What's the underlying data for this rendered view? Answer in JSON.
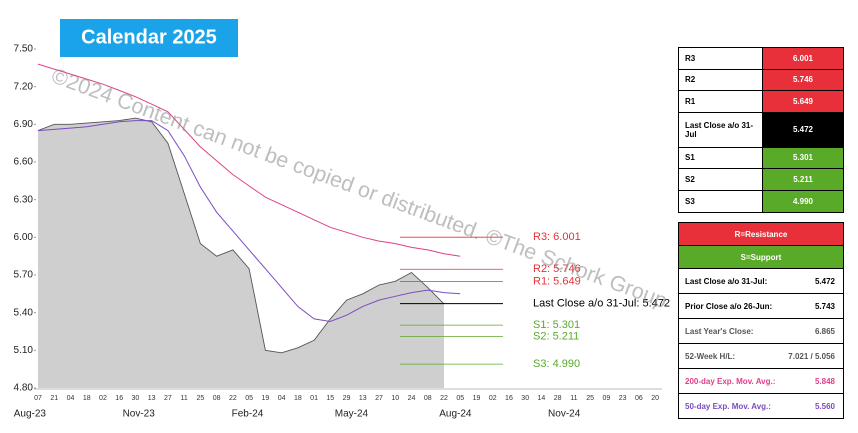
{
  "title": "Calendar 2025",
  "watermark": "©2024 Content can not be copied or distributed. ©The Schork Group",
  "chart_data": {
    "type": "line",
    "categories": [
      "07",
      "21",
      "04",
      "18",
      "02",
      "16",
      "30",
      "13",
      "27",
      "11",
      "25",
      "08",
      "22",
      "05",
      "19",
      "04",
      "18",
      "01",
      "15",
      "29",
      "13",
      "27",
      "10",
      "24",
      "08",
      "22",
      "05",
      "19",
      "02",
      "16",
      "30",
      "14",
      "28",
      "11",
      "25",
      "09",
      "23",
      "06",
      "20"
    ],
    "x_groups": [
      "Aug-23",
      "Nov-23",
      "Feb-24",
      "May-24",
      "Aug-24",
      "Nov-24"
    ],
    "ylim": [
      4.8,
      7.5
    ],
    "yticks": [
      {
        "value": 7.5,
        "label": "7.50"
      },
      {
        "value": 7.2,
        "label": "7.20"
      },
      {
        "value": 6.9,
        "label": "6.90"
      },
      {
        "value": 6.6,
        "label": "6.60"
      },
      {
        "value": 6.3,
        "label": "6.30"
      },
      {
        "value": 6.0,
        "label": "6.00"
      },
      {
        "value": 5.7,
        "label": "5.70"
      },
      {
        "value": 5.4,
        "label": "5.40"
      },
      {
        "value": 5.1,
        "label": "5.10"
      },
      {
        "value": 4.8,
        "label": "4.80"
      }
    ],
    "series": [
      {
        "style": "area",
        "color": "#cfcfcf",
        "values": [
          6.85,
          6.9,
          6.9,
          6.91,
          6.92,
          6.93,
          6.95,
          6.92,
          6.75,
          6.35,
          5.95,
          5.85,
          5.9,
          5.75,
          5.1,
          5.08,
          5.12,
          5.18,
          5.35,
          5.5,
          5.55,
          5.62,
          5.65,
          5.72,
          5.6,
          5.47,
          null,
          null,
          null,
          null,
          null,
          null,
          null,
          null,
          null,
          null,
          null,
          null,
          null
        ]
      },
      {
        "style": "line",
        "color": "#e0408a",
        "values": [
          7.38,
          7.34,
          7.3,
          7.26,
          7.22,
          7.17,
          7.12,
          7.06,
          7.0,
          6.86,
          6.72,
          6.61,
          6.5,
          6.41,
          6.32,
          6.26,
          6.2,
          6.14,
          6.08,
          6.04,
          6.0,
          5.97,
          5.95,
          5.92,
          5.9,
          5.87,
          5.85,
          null,
          null,
          null,
          null,
          null,
          null,
          null,
          null,
          null,
          null,
          null,
          null
        ]
      },
      {
        "style": "line",
        "color": "#7b4cc0",
        "values": [
          6.85,
          6.86,
          6.87,
          6.88,
          6.9,
          6.92,
          6.93,
          6.93,
          6.85,
          6.65,
          6.4,
          6.2,
          6.05,
          5.9,
          5.75,
          5.6,
          5.45,
          5.35,
          5.33,
          5.38,
          5.45,
          5.5,
          5.53,
          5.56,
          5.58,
          5.56,
          5.55,
          null,
          null,
          null,
          null,
          null,
          null,
          null,
          null,
          null,
          null,
          null,
          null
        ]
      }
    ],
    "levels": [
      {
        "name": "R3",
        "value": 6.001,
        "value_label": "6.001",
        "label": "R3: 6.001",
        "color": "#e8303a"
      },
      {
        "name": "R2",
        "value": 5.746,
        "value_label": "5.746",
        "label": "R2: 5.746",
        "color": "#e8303a"
      },
      {
        "name": "R1",
        "value": 5.649,
        "value_label": "5.649",
        "label": "R1: 5.649",
        "color": "#e8303a"
      },
      {
        "name": "Last Close a/o 31-Jul",
        "value": 5.472,
        "value_label": "5.472",
        "label": "Last Close a/o 31-Jul: 5.472",
        "color": "#000000"
      },
      {
        "name": "S1",
        "value": 5.301,
        "value_label": "5.301",
        "label": "S1: 5.301",
        "color": "#5aaa2a"
      },
      {
        "name": "S2",
        "value": 5.211,
        "value_label": "5.211",
        "label": "S2: 5.211",
        "color": "#5aaa2a"
      },
      {
        "name": "S3",
        "value": 4.99,
        "value_label": "4.990",
        "label": "S3: 4.990",
        "color": "#5aaa2a"
      }
    ]
  },
  "stats": {
    "headers": [
      {
        "text": "R=Resistance",
        "color": "#e8303a"
      },
      {
        "text": "S=Support",
        "color": "#5aaa2a"
      }
    ],
    "rows": [
      {
        "label": "Last Close a/o 31-Jul:",
        "value": "5.472",
        "color": "#000000"
      },
      {
        "label": "Prior Close a/o 26-Jun:",
        "value": "5.743",
        "color": "#000000"
      },
      {
        "label": "Last Year's Close:",
        "value": "6.865",
        "color": "#555555"
      },
      {
        "label": "52-Week H/L:",
        "value": "7.021 / 5.056",
        "color": "#555555"
      },
      {
        "label": "200-day Exp. Mov. Avg.:",
        "value": "5.848",
        "color": "#e0408a"
      },
      {
        "label": "50-day Exp. Mov. Avg.:",
        "value": "5.560",
        "color": "#7b4cc0"
      }
    ]
  }
}
